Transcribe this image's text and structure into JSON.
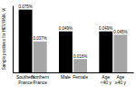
{
  "chart_data": {
    "type": "bar",
    "y_label": "Sample positives for HEV RNA, %",
    "categories": [
      "Southern France",
      "Northern France",
      "Male",
      "Female",
      "Age <40 y",
      "Age ≥40 y"
    ],
    "values": [
      0.075,
      0.037,
      0.049,
      0.016,
      0.049,
      0.045
    ],
    "value_labels": [
      "0.075%",
      "0.037%",
      "0.049%",
      "0.016%",
      "0.049%",
      "0.045%"
    ],
    "colors": [
      "#000000",
      "#a6a6a6",
      "#000000",
      "#a6a6a6",
      "#000000",
      "#a6a6a6"
    ],
    "ylim": [
      0,
      0.08
    ],
    "data_labels": true,
    "tick_labels": "x",
    "grid": false
  }
}
